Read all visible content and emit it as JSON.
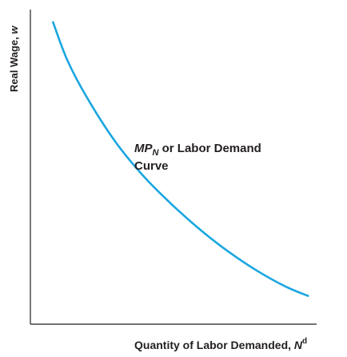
{
  "chart_data": {
    "type": "line",
    "title": "",
    "xlabel": {
      "main": "Quantity of Labor Demanded, ",
      "var": "N",
      "sup": "d"
    },
    "ylabel": {
      "main": "Real Wage, ",
      "var": "w"
    },
    "grid": false,
    "series": [
      {
        "label": {
          "line1_var": "MP",
          "line1_sub": "N",
          "line1_rest": " or Labor Demand",
          "line2": "Curve"
        },
        "color": "#1aa6e0",
        "x": [
          0.08,
          0.13,
          0.2,
          0.3,
          0.4,
          0.5,
          0.6,
          0.7,
          0.8,
          0.9,
          0.98
        ],
        "y": [
          0.96,
          0.84,
          0.72,
          0.58,
          0.47,
          0.38,
          0.3,
          0.23,
          0.17,
          0.12,
          0.09
        ]
      }
    ],
    "xlim": [
      0,
      1.05
    ],
    "ylim": [
      0,
      1.0
    ]
  }
}
